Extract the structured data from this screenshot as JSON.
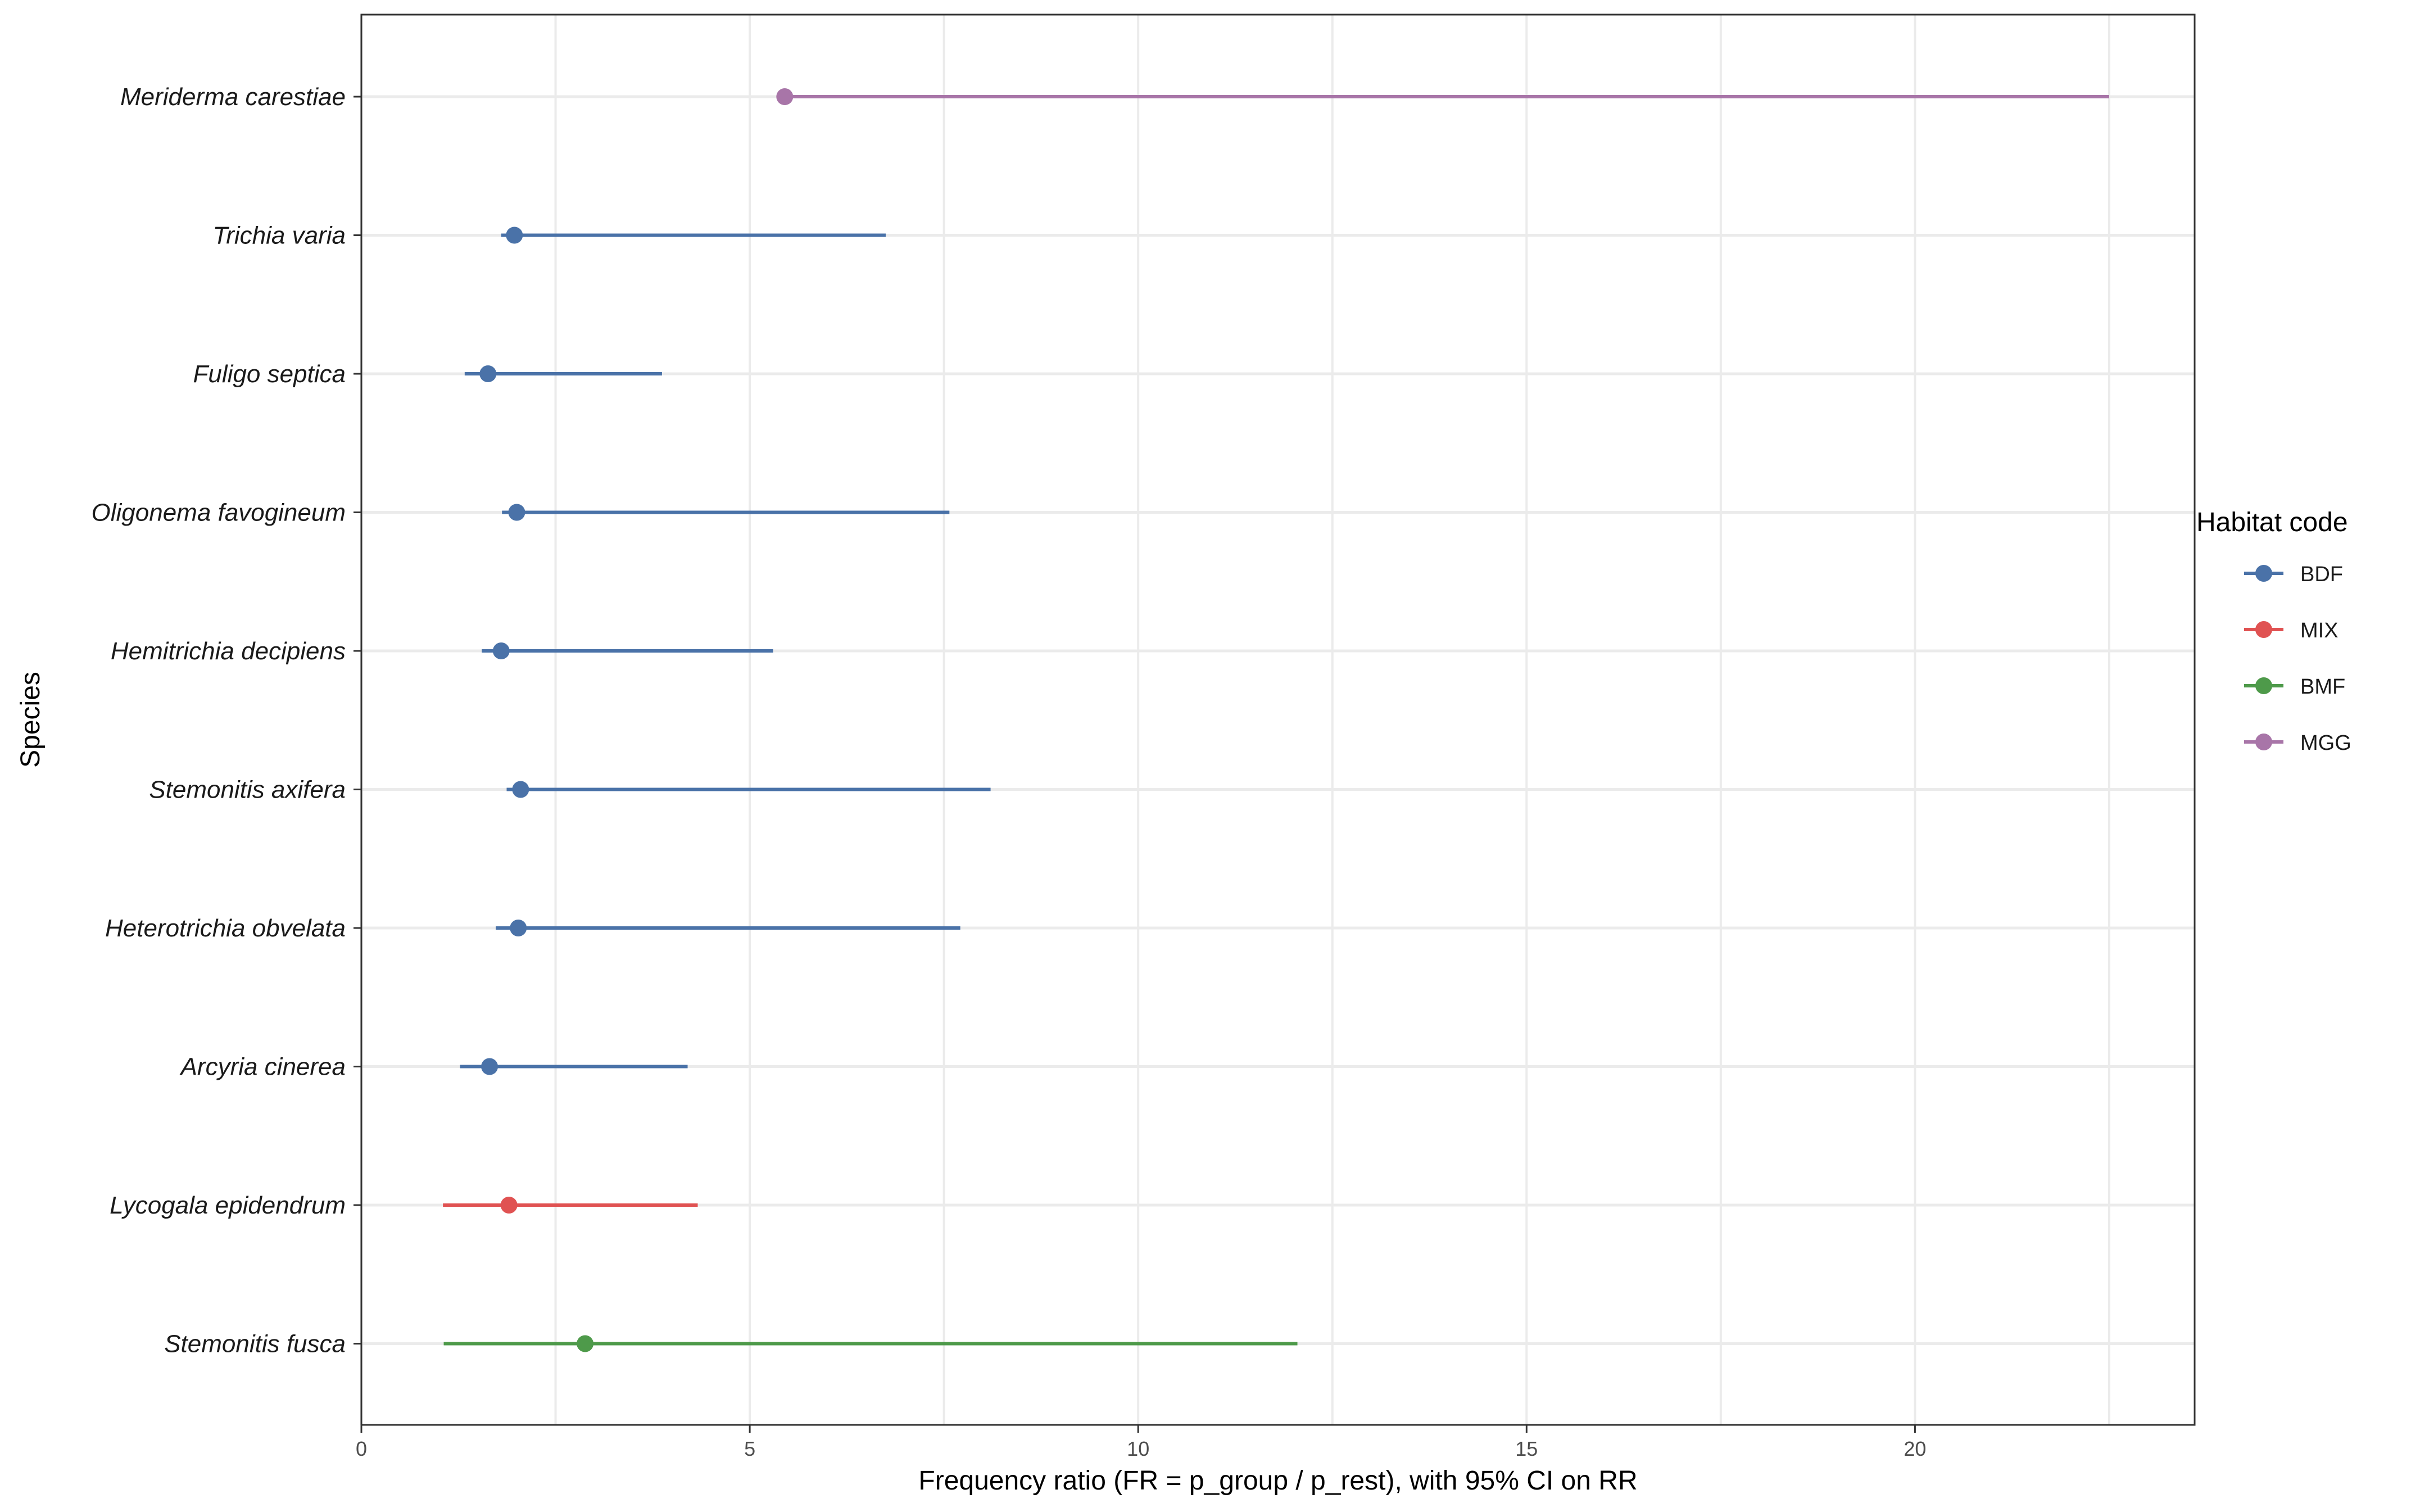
{
  "chart_data": {
    "type": "scatter",
    "subtype": "point-range",
    "xlabel": "Frequency ratio (FR = p_group / p_rest), with 95% CI on RR",
    "ylabel": "Species",
    "xlim": [
      0,
      23.6
    ],
    "x_ticks": [
      0,
      5,
      10,
      15,
      20
    ],
    "grid": true,
    "legend": {
      "title": "Habitat code",
      "placement": "right",
      "entries": [
        {
          "code": "BDF",
          "color": "#4A72A8"
        },
        {
          "code": "MIX",
          "color": "#E05252"
        },
        {
          "code": "BMF",
          "color": "#4E9A4A"
        },
        {
          "code": "MGG",
          "color": "#A875A8"
        }
      ]
    },
    "points": [
      {
        "species": "Meriderma carestiae",
        "habitat": "MGG",
        "fr": 5.45,
        "ci_low": 5.45,
        "ci_high": 22.5
      },
      {
        "species": "Trichia varia",
        "habitat": "BDF",
        "fr": 1.97,
        "ci_low": 1.8,
        "ci_high": 6.75
      },
      {
        "species": "Fuligo septica",
        "habitat": "BDF",
        "fr": 1.63,
        "ci_low": 1.33,
        "ci_high": 3.87
      },
      {
        "species": "Oligonema favogineum",
        "habitat": "BDF",
        "fr": 2.0,
        "ci_low": 1.81,
        "ci_high": 7.57
      },
      {
        "species": "Hemitrichia decipiens",
        "habitat": "BDF",
        "fr": 1.8,
        "ci_low": 1.55,
        "ci_high": 5.3
      },
      {
        "species": "Stemonitis axifera",
        "habitat": "BDF",
        "fr": 2.05,
        "ci_low": 1.87,
        "ci_high": 8.1
      },
      {
        "species": "Heterotrichia obvelata",
        "habitat": "BDF",
        "fr": 2.02,
        "ci_low": 1.73,
        "ci_high": 7.71
      },
      {
        "species": "Arcyria cinerea",
        "habitat": "BDF",
        "fr": 1.65,
        "ci_low": 1.27,
        "ci_high": 4.2
      },
      {
        "species": "Lycogala epidendrum",
        "habitat": "MIX",
        "fr": 1.9,
        "ci_low": 1.05,
        "ci_high": 4.33
      },
      {
        "species": "Stemonitis fusca",
        "habitat": "BMF",
        "fr": 2.88,
        "ci_low": 1.06,
        "ci_high": 12.05
      }
    ]
  }
}
